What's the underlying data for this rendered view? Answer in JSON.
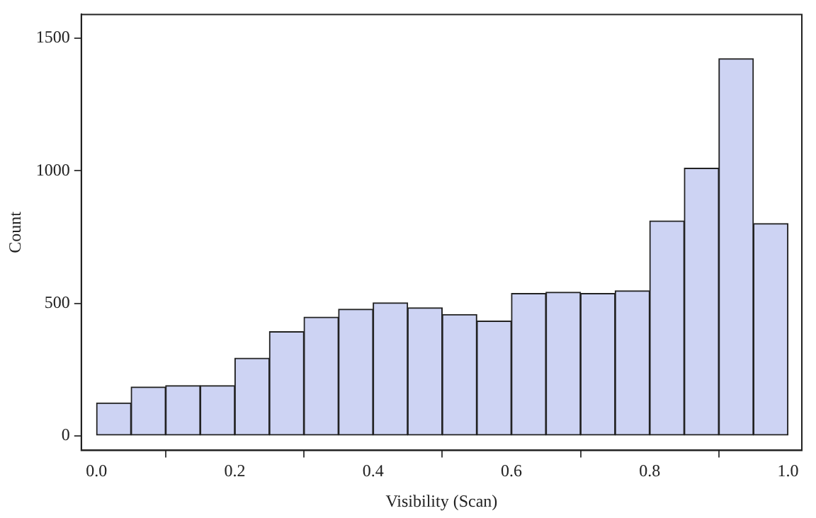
{
  "chart_data": {
    "type": "histogram",
    "xlabel": "Visibility (Scan)",
    "ylabel": "Count",
    "bins": [
      0,
      0.05,
      0.1,
      0.15,
      0.2,
      0.25,
      0.3,
      0.35,
      0.4,
      0.45,
      0.5,
      0.55,
      0.6,
      0.65,
      0.7,
      0.75,
      0.8,
      0.85,
      0.9,
      0.95,
      1.0
    ],
    "values": [
      124,
      184,
      189,
      189,
      293,
      393,
      448,
      478,
      502,
      483,
      458,
      433,
      537,
      542,
      537,
      547,
      811,
      1010,
      1423,
      801
    ],
    "color": "#cdd3f3",
    "xlim": [
      -0.022,
      1.02
    ],
    "xticks": [
      {
        "value": 0,
        "label": "0.0"
      },
      0.2,
      0.4,
      0.6,
      0.8,
      {
        "value": 1,
        "label": "1.0"
      }
    ],
    "ylim": [
      -55,
      1590
    ],
    "yticks": [
      0,
      500,
      1000,
      1500
    ],
    "grid": false,
    "legend": false
  }
}
